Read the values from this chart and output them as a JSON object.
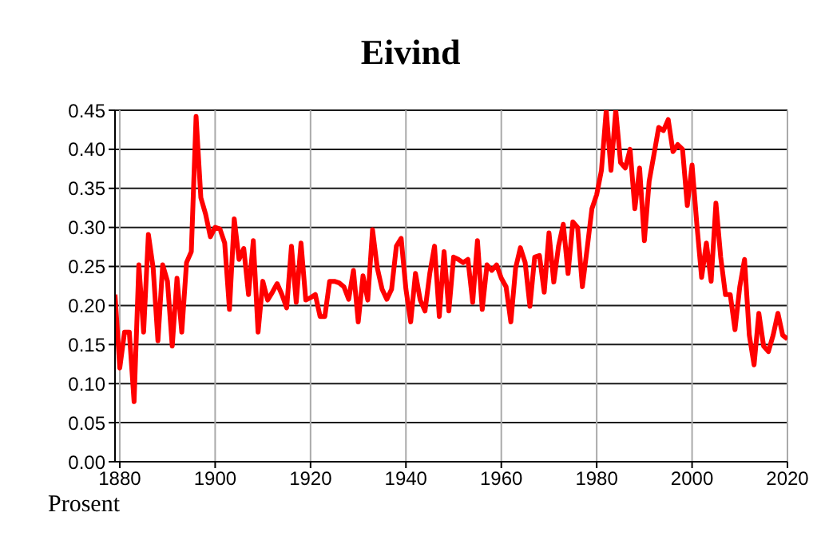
{
  "chart_data": {
    "type": "line",
    "title": "Eivind",
    "annotations": [
      "Prosent"
    ],
    "x": [
      1879,
      1880,
      1881,
      1882,
      1883,
      1884,
      1885,
      1886,
      1887,
      1888,
      1889,
      1890,
      1891,
      1892,
      1893,
      1894,
      1895,
      1896,
      1897,
      1898,
      1899,
      1900,
      1901,
      1902,
      1903,
      1904,
      1905,
      1906,
      1907,
      1908,
      1909,
      1910,
      1911,
      1912,
      1913,
      1914,
      1915,
      1916,
      1917,
      1918,
      1919,
      1920,
      1921,
      1922,
      1923,
      1924,
      1925,
      1926,
      1927,
      1928,
      1929,
      1930,
      1931,
      1932,
      1933,
      1934,
      1935,
      1936,
      1937,
      1938,
      1939,
      1940,
      1941,
      1942,
      1943,
      1944,
      1945,
      1946,
      1947,
      1948,
      1949,
      1950,
      1951,
      1952,
      1953,
      1954,
      1955,
      1956,
      1957,
      1958,
      1959,
      1960,
      1961,
      1962,
      1963,
      1964,
      1965,
      1966,
      1967,
      1968,
      1969,
      1970,
      1971,
      1972,
      1973,
      1974,
      1975,
      1976,
      1977,
      1978,
      1979,
      1980,
      1981,
      1982,
      1983,
      1984,
      1985,
      1986,
      1987,
      1988,
      1989,
      1990,
      1991,
      1992,
      1993,
      1994,
      1995,
      1996,
      1997,
      1998,
      1999,
      2000,
      2001,
      2002,
      2003,
      2004,
      2005,
      2006,
      2007,
      2008,
      2009,
      2010,
      2011,
      2012,
      2013,
      2014,
      2015,
      2016,
      2017,
      2018,
      2019,
      2020
    ],
    "series": [
      {
        "color": "#ff0000",
        "values": [
          0.214,
          0.12,
          0.166,
          0.166,
          0.077,
          0.252,
          0.166,
          0.291,
          0.248,
          0.155,
          0.252,
          0.231,
          0.148,
          0.235,
          0.166,
          0.255,
          0.269,
          0.442,
          0.338,
          0.317,
          0.288,
          0.3,
          0.298,
          0.28,
          0.195,
          0.311,
          0.259,
          0.273,
          0.214,
          0.283,
          0.166,
          0.231,
          0.207,
          0.217,
          0.228,
          0.214,
          0.197,
          0.276,
          0.204,
          0.28,
          0.207,
          0.21,
          0.214,
          0.186,
          0.186,
          0.231,
          0.231,
          0.229,
          0.224,
          0.208,
          0.245,
          0.179,
          0.238,
          0.207,
          0.297,
          0.248,
          0.221,
          0.208,
          0.221,
          0.276,
          0.286,
          0.221,
          0.179,
          0.241,
          0.207,
          0.193,
          0.241,
          0.276,
          0.186,
          0.269,
          0.193,
          0.262,
          0.259,
          0.255,
          0.259,
          0.204,
          0.283,
          0.195,
          0.252,
          0.245,
          0.252,
          0.235,
          0.224,
          0.179,
          0.248,
          0.274,
          0.255,
          0.199,
          0.262,
          0.264,
          0.217,
          0.293,
          0.23,
          0.276,
          0.304,
          0.241,
          0.307,
          0.3,
          0.224,
          0.273,
          0.324,
          0.342,
          0.373,
          0.45,
          0.373,
          0.45,
          0.383,
          0.376,
          0.4,
          0.324,
          0.376,
          0.283,
          0.359,
          0.393,
          0.428,
          0.424,
          0.438,
          0.397,
          0.406,
          0.4,
          0.328,
          0.38,
          0.304,
          0.236,
          0.28,
          0.231,
          0.331,
          0.262,
          0.214,
          0.214,
          0.169,
          0.224,
          0.259,
          0.162,
          0.124,
          0.19,
          0.148,
          0.141,
          0.162,
          0.19,
          0.162,
          0.157
        ]
      }
    ],
    "xlim": [
      1879,
      2020
    ],
    "xticks": [
      1880,
      1900,
      1920,
      1940,
      1960,
      1980,
      2000,
      2020
    ],
    "ylim": [
      0,
      0.45
    ],
    "yticks": [
      {
        "value": 0,
        "label": "0.00"
      },
      {
        "value": 0.05,
        "label": "0.05"
      },
      {
        "value": 0.1,
        "label": "0.10"
      },
      {
        "value": 0.15,
        "label": "0.15"
      },
      {
        "value": 0.2,
        "label": "0.20"
      },
      {
        "value": 0.25,
        "label": "0.25"
      },
      {
        "value": 0.3,
        "label": "0.30"
      },
      {
        "value": 0.35,
        "label": "0.35"
      },
      {
        "value": 0.4,
        "label": "0.40"
      },
      {
        "value": 0.45,
        "label": "0.45"
      }
    ],
    "grid": true,
    "legend": false,
    "marker": "none",
    "line_style": "solid"
  }
}
